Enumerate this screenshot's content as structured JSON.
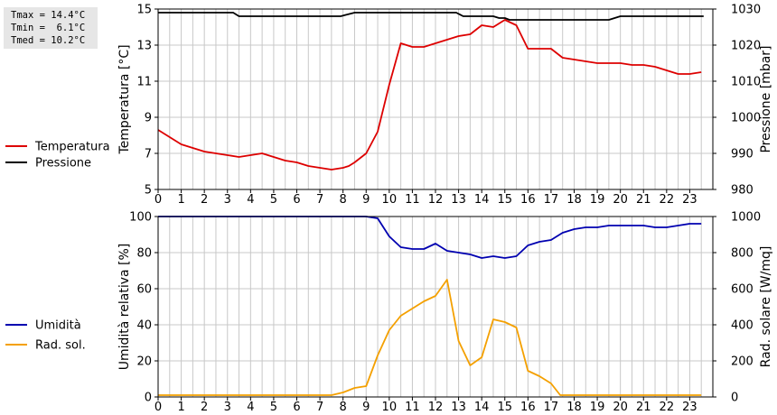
{
  "stats": {
    "tmax": "Tmax = 14.4°C",
    "tmin": "Tmin =  6.1°C",
    "tmed": "Tmed = 10.2°C"
  },
  "colors": {
    "temperature": "#dd0000",
    "pressure": "#000000",
    "humidity": "#0000b0",
    "radiation": "#f4a000",
    "grid": "#c8c8c8",
    "frame": "#000000"
  },
  "chart_data": [
    {
      "type": "line",
      "name": "top",
      "legend_position": "left",
      "grid": true,
      "x_ticks": [
        "0",
        "1",
        "2",
        "3",
        "4",
        "5",
        "6",
        "7",
        "8",
        "9",
        "10",
        "11",
        "12",
        "13",
        "14",
        "15",
        "16",
        "17",
        "18",
        "19",
        "20",
        "21",
        "22",
        "23"
      ],
      "xlim": [
        0,
        24
      ],
      "ylabel_left": "Temperatura [°C]",
      "ylabel_right": "Pressione [mbar]",
      "ylim_left": [
        5,
        15
      ],
      "ylim_right": [
        980,
        1030
      ],
      "yticks_left": [
        "5",
        "7",
        "9",
        "11",
        "13",
        "15"
      ],
      "yticks_right": [
        "980",
        "990",
        "1000",
        "1010",
        "1020",
        "1030"
      ],
      "series": [
        {
          "name": "Temperatura",
          "axis": "left",
          "color": "#dd0000",
          "x": [
            0,
            0.25,
            0.5,
            0.75,
            1,
            1.5,
            2,
            2.5,
            3,
            3.5,
            4,
            4.5,
            5,
            5.5,
            6,
            6.5,
            7,
            7.5,
            8,
            8.25,
            8.5,
            9,
            9.5,
            10,
            10.5,
            11,
            11.5,
            12,
            12.5,
            13,
            13.5,
            14,
            14.5,
            14.75,
            15,
            15.5,
            16,
            16.5,
            17,
            17.5,
            18,
            18.5,
            19,
            19.5,
            20,
            20.5,
            21,
            21.5,
            22,
            22.5,
            23,
            23.5
          ],
          "y": [
            8.3,
            8.1,
            7.9,
            7.7,
            7.5,
            7.3,
            7.1,
            7.0,
            6.9,
            6.8,
            6.9,
            7.0,
            6.8,
            6.6,
            6.5,
            6.3,
            6.2,
            6.1,
            6.2,
            6.3,
            6.5,
            7.0,
            8.2,
            10.8,
            13.1,
            12.9,
            12.9,
            13.1,
            13.3,
            13.5,
            13.6,
            14.1,
            14.0,
            14.2,
            14.4,
            14.1,
            12.8,
            12.8,
            12.8,
            12.3,
            12.2,
            12.1,
            12.0,
            12.0,
            12.0,
            11.9,
            11.9,
            11.8,
            11.6,
            11.4,
            11.4,
            11.5
          ]
        },
        {
          "name": "Pressione",
          "axis": "right",
          "color": "#000000",
          "x": [
            0,
            3.25,
            3.5,
            7.9,
            8.5,
            12.9,
            13.2,
            14.5,
            14.75,
            15,
            15.2,
            19.5,
            20,
            23.6
          ],
          "y": [
            1029,
            1029,
            1028,
            1028,
            1029,
            1029,
            1028,
            1028,
            1027.5,
            1027.5,
            1027,
            1027,
            1028,
            1028
          ]
        }
      ]
    },
    {
      "type": "line",
      "name": "bottom",
      "legend_position": "left",
      "grid": true,
      "x_ticks": [
        "0",
        "1",
        "2",
        "3",
        "4",
        "5",
        "6",
        "7",
        "8",
        "9",
        "10",
        "11",
        "12",
        "13",
        "14",
        "15",
        "16",
        "17",
        "18",
        "19",
        "20",
        "21",
        "22",
        "23"
      ],
      "xlim": [
        0,
        24
      ],
      "ylabel_left": "Umidità relativa [%]",
      "ylabel_right": "Rad. solare [W/mq]",
      "ylim_left": [
        0,
        100
      ],
      "ylim_right": [
        0,
        1000
      ],
      "yticks_left": [
        "0",
        "20",
        "40",
        "60",
        "80",
        "100"
      ],
      "yticks_right": [
        "0",
        "200",
        "400",
        "600",
        "800",
        "1000"
      ],
      "series": [
        {
          "name": "Umidità",
          "axis": "left",
          "color": "#0000b0",
          "x": [
            0,
            9,
            9.5,
            10,
            10.5,
            11,
            11.5,
            12,
            12.5,
            13,
            13.5,
            14,
            14.5,
            15,
            15.5,
            16,
            16.5,
            17,
            17.5,
            18,
            18.5,
            19,
            19.5,
            20,
            20.5,
            21,
            21.5,
            22,
            22.5,
            23,
            23.5
          ],
          "y": [
            100,
            100,
            99,
            89,
            83,
            82,
            82,
            85,
            81,
            80,
            79,
            77,
            78,
            77,
            78,
            84,
            86,
            87,
            91,
            93,
            94,
            94,
            95,
            95,
            95,
            95,
            94,
            94,
            95,
            96,
            96
          ]
        },
        {
          "name": "Rad. sol.",
          "axis": "right",
          "color": "#f4a000",
          "x": [
            0,
            7.5,
            8,
            8.5,
            9,
            9.5,
            10,
            10.5,
            11,
            11.5,
            12,
            12.5,
            13,
            13.5,
            14,
            14.5,
            15,
            15.5,
            16,
            16.5,
            17,
            17.4,
            18,
            19,
            20,
            21,
            22,
            23,
            23.5
          ],
          "y": [
            10,
            10,
            25,
            50,
            60,
            230,
            370,
            450,
            490,
            530,
            560,
            650,
            310,
            175,
            220,
            430,
            415,
            385,
            145,
            115,
            75,
            10,
            10,
            10,
            10,
            10,
            10,
            10,
            10
          ]
        }
      ]
    }
  ]
}
